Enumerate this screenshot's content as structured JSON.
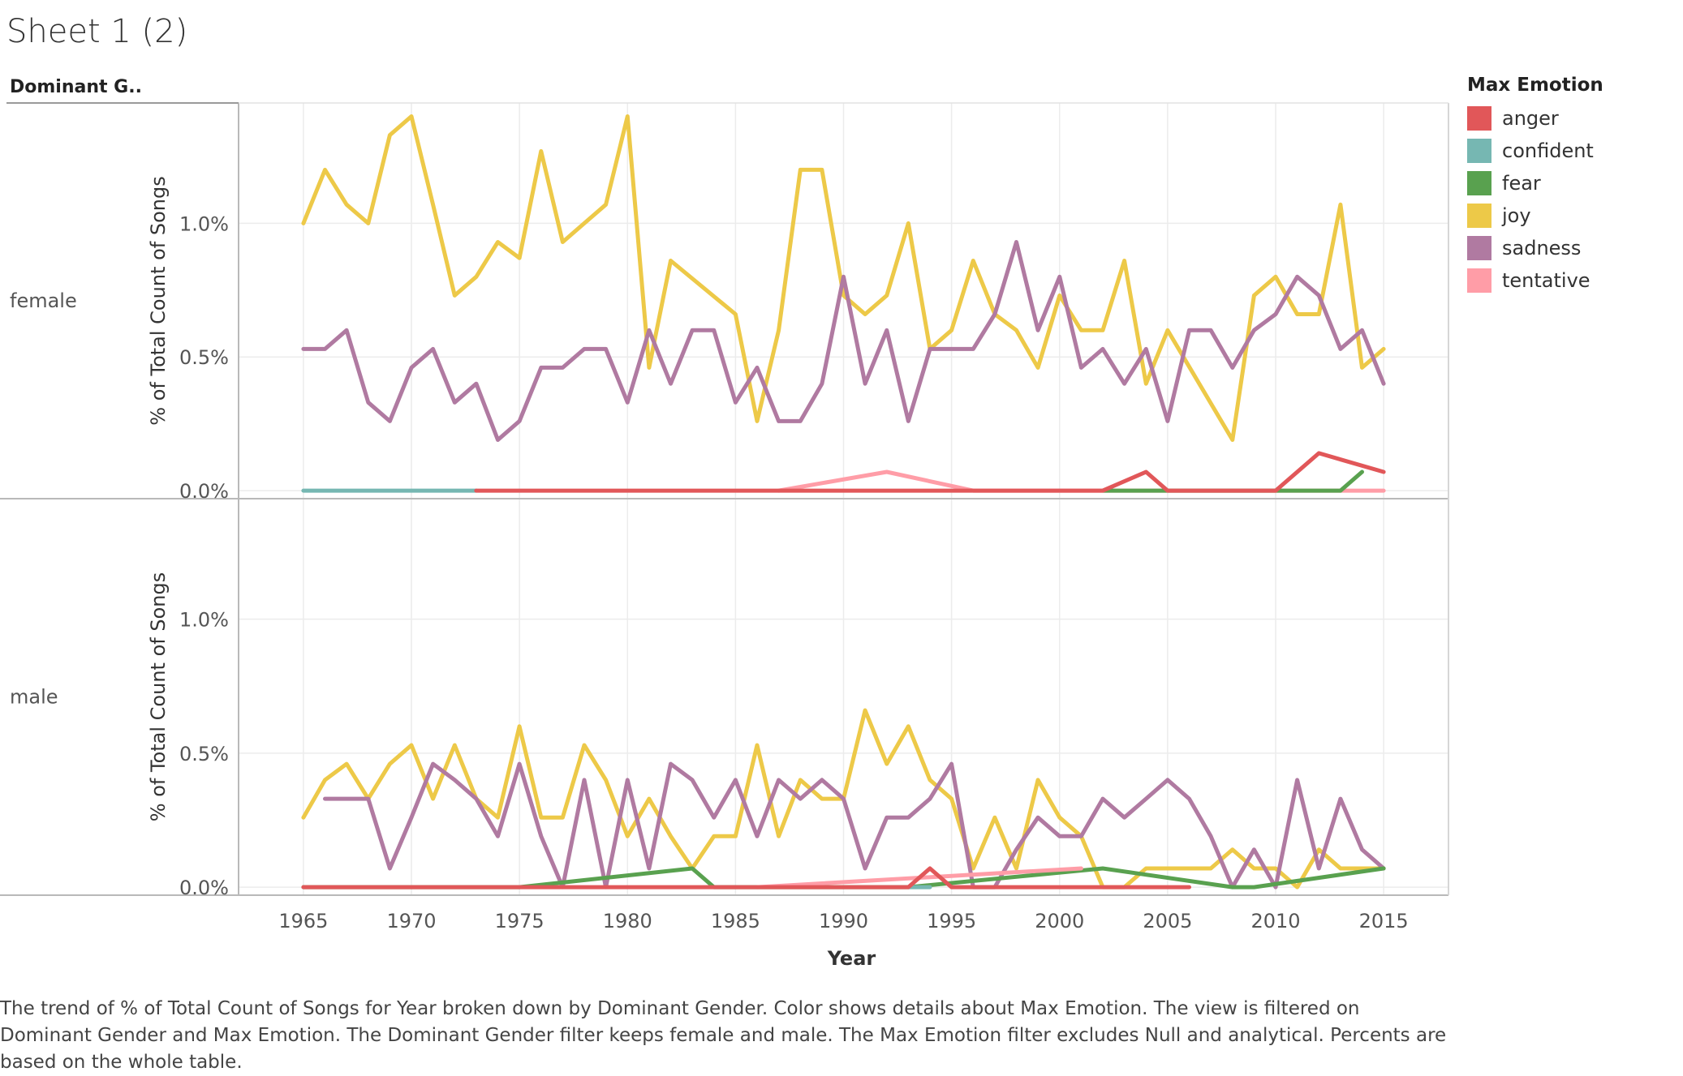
{
  "title": "Sheet 1 (2)",
  "row_header": "Dominant G..",
  "caption": "The trend of % of Total Count of Songs for Year broken down by Dominant Gender.  Color shows details about Max Emotion. The view is filtered on Dominant Gender and Max Emotion. The Dominant Gender filter keeps female and male. The Max Emotion filter excludes Null and analytical. Percents are based on the whole table.",
  "legend": {
    "title": "Max Emotion",
    "items": [
      {
        "label": "anger",
        "color": "#e15759"
      },
      {
        "label": "confident",
        "color": "#76b7b2"
      },
      {
        "label": "fear",
        "color": "#59a14f"
      },
      {
        "label": "joy",
        "color": "#edc948"
      },
      {
        "label": "sadness",
        "color": "#b07aa1"
      },
      {
        "label": "tentative",
        "color": "#ff9da7"
      }
    ]
  },
  "chart_data": {
    "type": "line",
    "xlabel": "Year",
    "ylabel": "% of Total Count of Songs",
    "x_ticks": [
      1965,
      1970,
      1975,
      1980,
      1985,
      1990,
      1995,
      2000,
      2005,
      2010,
      2015
    ],
    "y_ticks": [
      0.0,
      0.5,
      1.0
    ],
    "y_tick_labels": [
      "0.0%",
      "0.5%",
      "1.0%"
    ],
    "xlim": [
      1962,
      2018
    ],
    "ylim": [
      -0.03,
      1.45
    ],
    "grid": true,
    "legend_position": "right",
    "panels": [
      {
        "label": "female",
        "series": [
          {
            "name": "joy",
            "x": [
              1965,
              1966,
              1967,
              1968,
              1969,
              1970,
              1971,
              1972,
              1973,
              1974,
              1975,
              1976,
              1977,
              1978,
              1979,
              1980,
              1981,
              1982,
              1985,
              1986,
              1987,
              1988,
              1989,
              1990,
              1991,
              1992,
              1993,
              1994,
              1995,
              1996,
              1997,
              1998,
              1999,
              2000,
              2001,
              2002,
              2003,
              2004,
              2005,
              2008,
              2009,
              2010,
              2011,
              2012,
              2013,
              2014,
              2015
            ],
            "y": [
              1.0,
              1.2,
              1.07,
              1.0,
              1.33,
              1.4,
              1.07,
              0.73,
              0.8,
              0.93,
              0.87,
              1.27,
              0.93,
              1.0,
              1.07,
              1.4,
              0.46,
              0.86,
              0.66,
              0.26,
              0.6,
              1.2,
              1.2,
              0.73,
              0.66,
              0.73,
              1.0,
              0.53,
              0.6,
              0.86,
              0.66,
              0.6,
              0.46,
              0.73,
              0.6,
              0.6,
              0.86,
              0.4,
              0.6,
              0.19,
              0.73,
              0.8,
              0.66,
              0.66,
              1.07,
              0.46,
              0.53
            ]
          },
          {
            "name": "sadness",
            "x": [
              1965,
              1966,
              1967,
              1968,
              1969,
              1970,
              1971,
              1972,
              1973,
              1974,
              1975,
              1976,
              1977,
              1978,
              1979,
              1980,
              1981,
              1982,
              1983,
              1984,
              1985,
              1986,
              1987,
              1988,
              1989,
              1990,
              1991,
              1992,
              1993,
              1994,
              1995,
              1996,
              1997,
              1998,
              1999,
              2000,
              2001,
              2002,
              2003,
              2004,
              2005,
              2006,
              2007,
              2008,
              2009,
              2010,
              2011,
              2012,
              2013,
              2014,
              2015
            ],
            "y": [
              0.53,
              0.53,
              0.6,
              0.33,
              0.26,
              0.46,
              0.53,
              0.33,
              0.4,
              0.19,
              0.26,
              0.46,
              0.46,
              0.53,
              0.53,
              0.33,
              0.6,
              0.4,
              0.6,
              0.6,
              0.33,
              0.46,
              0.26,
              0.26,
              0.4,
              0.8,
              0.4,
              0.6,
              0.26,
              0.53,
              0.53,
              0.53,
              0.66,
              0.93,
              0.6,
              0.8,
              0.46,
              0.53,
              0.4,
              0.53,
              0.26,
              0.6,
              0.6,
              0.46,
              0.6,
              0.66,
              0.8,
              0.73,
              0.53,
              0.6,
              0.4
            ]
          },
          {
            "name": "confident",
            "x": [
              1965,
              1973
            ],
            "y": [
              0.0,
              0.0
            ]
          },
          {
            "name": "tentative",
            "x": [
              1987,
              1992,
              1996,
              2015
            ],
            "y": [
              0.0,
              0.07,
              0.0,
              0.0
            ]
          },
          {
            "name": "fear",
            "x": [
              2002,
              2013,
              2014
            ],
            "y": [
              0.0,
              0.0,
              0.07
            ]
          },
          {
            "name": "anger",
            "x": [
              1973,
              2002,
              2004,
              2005,
              2010,
              2012,
              2015
            ],
            "y": [
              0.0,
              0.0,
              0.07,
              0.0,
              0.0,
              0.14,
              0.07
            ]
          }
        ]
      },
      {
        "label": "male",
        "series": [
          {
            "name": "joy",
            "x": [
              1965,
              1966,
              1967,
              1968,
              1969,
              1970,
              1971,
              1972,
              1973,
              1974,
              1975,
              1976,
              1977,
              1978,
              1979,
              1980,
              1981,
              1982,
              1983,
              1984,
              1985,
              1986,
              1987,
              1988,
              1989,
              1990,
              1991,
              1992,
              1993,
              1994,
              1995,
              1996,
              1997,
              1998,
              1999,
              2000,
              2001,
              2002,
              2003,
              2004,
              2005,
              2006,
              2007,
              2008,
              2009,
              2010,
              2011,
              2012,
              2013,
              2014,
              2015
            ],
            "y": [
              0.26,
              0.4,
              0.46,
              0.33,
              0.46,
              0.53,
              0.33,
              0.53,
              0.33,
              0.26,
              0.6,
              0.26,
              0.26,
              0.53,
              0.4,
              0.19,
              0.33,
              0.19,
              0.07,
              0.19,
              0.19,
              0.53,
              0.19,
              0.4,
              0.33,
              0.33,
              0.66,
              0.46,
              0.6,
              0.4,
              0.33,
              0.07,
              0.26,
              0.07,
              0.4,
              0.26,
              0.19,
              0.0,
              0.0,
              0.07,
              0.07,
              0.07,
              0.07,
              0.14,
              0.07,
              0.07,
              0.0,
              0.14,
              0.07,
              0.07,
              0.07
            ]
          },
          {
            "name": "sadness",
            "x": [
              1966,
              1967,
              1968,
              1969,
              1970,
              1971,
              1972,
              1973,
              1974,
              1975,
              1976,
              1977,
              1978,
              1979,
              1980,
              1981,
              1982,
              1983,
              1984,
              1985,
              1986,
              1987,
              1988,
              1989,
              1990,
              1991,
              1992,
              1993,
              1994,
              1995,
              1996,
              1997,
              1998,
              1999,
              2000,
              2001,
              2002,
              2003,
              2004,
              2005,
              2006,
              2007,
              2008,
              2009,
              2010,
              2011,
              2012,
              2013,
              2014,
              2015
            ],
            "y": [
              0.33,
              0.33,
              0.33,
              0.07,
              0.26,
              0.46,
              0.4,
              0.33,
              0.19,
              0.46,
              0.19,
              0.0,
              0.4,
              0.0,
              0.4,
              0.07,
              0.46,
              0.4,
              0.26,
              0.4,
              0.19,
              0.4,
              0.33,
              0.4,
              0.33,
              0.07,
              0.26,
              0.26,
              0.33,
              0.46,
              0.0,
              0.0,
              0.14,
              0.26,
              0.19,
              0.19,
              0.33,
              0.26,
              0.33,
              0.4,
              0.33,
              0.19,
              0.0,
              0.14,
              0.0,
              0.4,
              0.07,
              0.33,
              0.14,
              0.07
            ]
          },
          {
            "name": "fear",
            "x": [
              1965,
              1975,
              1983,
              1984,
              1993,
              2002,
              2008,
              2009,
              2015
            ],
            "y": [
              0.0,
              0.0,
              0.07,
              0.0,
              0.0,
              0.07,
              0.0,
              0.0,
              0.07
            ]
          },
          {
            "name": "confident",
            "x": [
              1993,
              1994
            ],
            "y": [
              0.0,
              0.0
            ]
          },
          {
            "name": "tentative",
            "x": [
              1986,
              2001
            ],
            "y": [
              0.0,
              0.07
            ]
          },
          {
            "name": "anger",
            "x": [
              1965,
              1993,
              1994,
              1995,
              2006
            ],
            "y": [
              0.0,
              0.0,
              0.07,
              0.0,
              0.0
            ]
          }
        ]
      }
    ]
  }
}
